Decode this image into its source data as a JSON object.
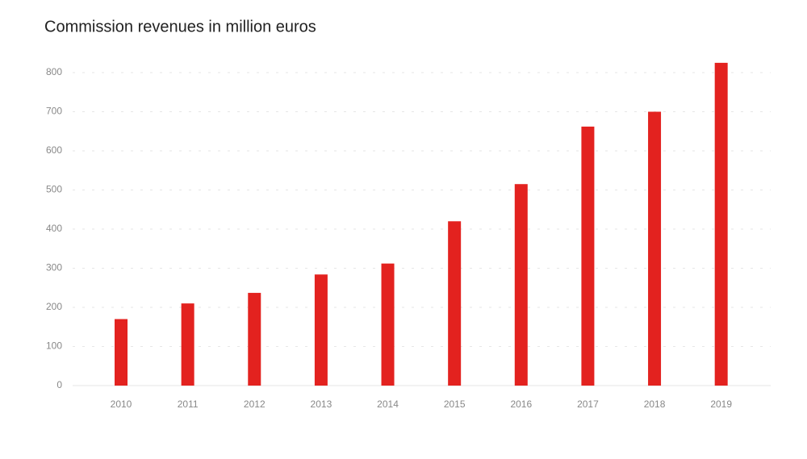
{
  "chart_data": {
    "type": "bar",
    "title": "Commission revenues in million euros",
    "categories": [
      "2010",
      "2011",
      "2012",
      "2013",
      "2014",
      "2015",
      "2016",
      "2017",
      "2018",
      "2019"
    ],
    "values": [
      170,
      210,
      237,
      284,
      312,
      420,
      515,
      662,
      700,
      825
    ],
    "color": "#e3221f",
    "ylim": [
      0,
      850
    ],
    "yticks": [
      0,
      100,
      200,
      300,
      400,
      500,
      600,
      700,
      800
    ],
    "grid": true
  }
}
